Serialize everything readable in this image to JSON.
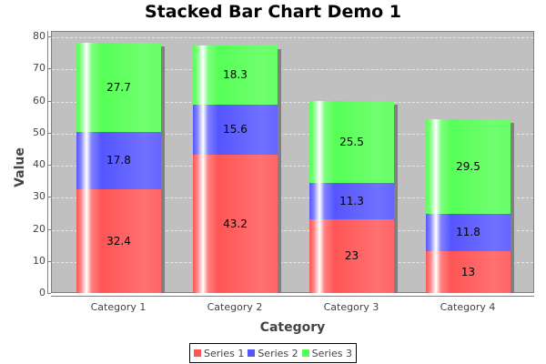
{
  "chart_data": {
    "type": "bar",
    "stacked": true,
    "title": "Stacked Bar Chart Demo 1",
    "xlabel": "Category",
    "ylabel": "Value",
    "ylim": [
      0,
      80
    ],
    "yticks": [
      0,
      10,
      20,
      30,
      40,
      50,
      60,
      70,
      80
    ],
    "grid": true,
    "legend_position": "bottom",
    "categories": [
      "Category 1",
      "Category 2",
      "Category 3",
      "Category 4"
    ],
    "series": [
      {
        "name": "Series 1",
        "color": "#ff5555",
        "values": [
          32.4,
          43.2,
          23,
          13
        ]
      },
      {
        "name": "Series 2",
        "color": "#5555ff",
        "values": [
          17.8,
          15.6,
          11.3,
          11.8
        ]
      },
      {
        "name": "Series 3",
        "color": "#55ff55",
        "values": [
          27.7,
          18.3,
          25.5,
          29.5
        ]
      }
    ],
    "value_labels": [
      [
        "32.4",
        "43.2",
        "23",
        "13"
      ],
      [
        "17.8",
        "15.6",
        "11.3",
        "11.8"
      ],
      [
        "27.7",
        "18.3",
        "25.5",
        "29.5"
      ]
    ]
  }
}
